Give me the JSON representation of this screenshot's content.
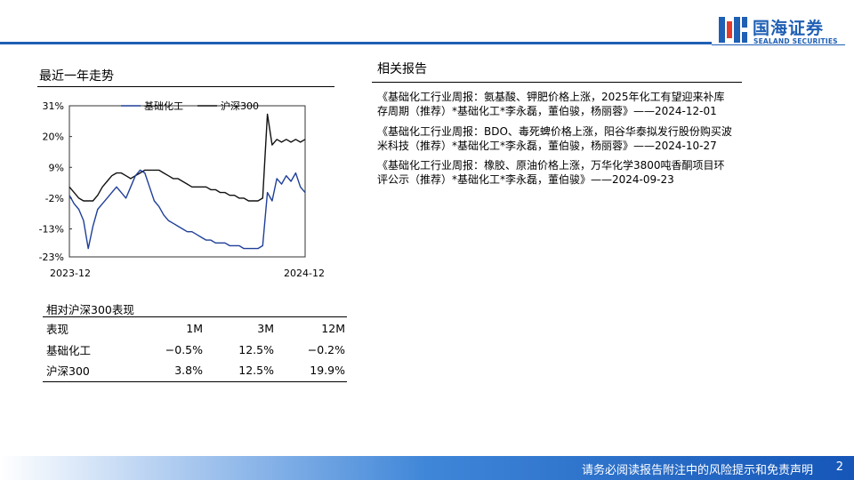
{
  "brand": {
    "name_cn": "国海证券",
    "name_en": "SEALAND SECURITIES",
    "color": "#1f5fb4"
  },
  "trend_section": {
    "title": "最近一年走势"
  },
  "reports_section": {
    "title": "相关报告",
    "items": [
      "《基础化工行业周报：氨基酸、钾肥价格上涨，2025年化工有望迎来补库存周期（推荐）*基础化工*李永磊，董伯骏，杨丽蓉》——2024-12-01",
      "《基础化工行业周报：BDO、毒死蜱价格上涨，阳谷华泰拟发行股份购买波米科技（推荐）*基础化工*李永磊，董伯骏，杨丽蓉》——2024-10-27",
      "《基础化工行业周报：橡胶、原油价格上涨，万华化学3800吨香酮项目环评公示（推荐）*基础化工*李永磊，董伯骏》——2024-09-23"
    ]
  },
  "chart_data": {
    "type": "line",
    "title": "",
    "xlabel": "",
    "ylabel": "",
    "x_tick_labels": [
      "2023-12",
      "2024-12"
    ],
    "y_ticks": [
      31,
      20,
      9,
      -2,
      -13,
      -23
    ],
    "y_tick_labels": [
      "31%",
      "20%",
      "9%",
      "-2%",
      "-13%",
      "-23%"
    ],
    "ylim": [
      -23,
      31
    ],
    "grid": false,
    "legend_position": "top",
    "x": [
      0,
      0.02,
      0.04,
      0.06,
      0.08,
      0.1,
      0.12,
      0.14,
      0.16,
      0.18,
      0.2,
      0.22,
      0.24,
      0.26,
      0.28,
      0.3,
      0.32,
      0.34,
      0.36,
      0.38,
      0.4,
      0.42,
      0.44,
      0.46,
      0.48,
      0.5,
      0.52,
      0.54,
      0.56,
      0.58,
      0.6,
      0.62,
      0.64,
      0.66,
      0.68,
      0.7,
      0.72,
      0.74,
      0.76,
      0.78,
      0.8,
      0.82,
      0.84,
      0.86,
      0.88,
      0.9,
      0.92,
      0.94,
      0.96,
      0.98,
      1
    ],
    "series": [
      {
        "name": "基础化工",
        "color": "#1f3f99",
        "values": [
          -1,
          -4,
          -6,
          -10,
          -20,
          -12,
          -6,
          -4,
          -2,
          0,
          2,
          0,
          -2,
          2,
          6,
          8,
          7,
          2,
          -3,
          -5,
          -8,
          -10,
          -11,
          -12,
          -13,
          -14,
          -14,
          -15,
          -16,
          -17,
          -17,
          -18,
          -18,
          -18,
          -19,
          -19,
          -19,
          -20,
          -20,
          -20,
          -20,
          -19,
          0,
          -3,
          5,
          3,
          6,
          4,
          7,
          2,
          0
        ]
      },
      {
        "name": "沪深300",
        "color": "#111111",
        "values": [
          2,
          0,
          -2,
          -3,
          -3,
          -3,
          -1,
          2,
          4,
          6,
          7,
          7,
          6,
          5,
          6,
          7,
          8,
          8,
          8,
          8,
          7,
          6,
          5,
          5,
          4,
          3,
          2,
          2,
          2,
          2,
          1,
          1,
          0,
          0,
          -1,
          -1,
          -2,
          -2,
          -3,
          -3,
          -3,
          -2,
          28,
          17,
          19,
          18,
          19,
          18,
          19,
          18,
          19
        ]
      }
    ]
  },
  "performance_table": {
    "title": "相对沪深300表现",
    "headers": [
      "表现",
      "1M",
      "3M",
      "12M"
    ],
    "rows": [
      [
        "基础化工",
        "−0.5%",
        "12.5%",
        "−0.2%"
      ],
      [
        "沪深300",
        "3.8%",
        "12.5%",
        "19.9%"
      ]
    ]
  },
  "footer": {
    "disclaimer": "请务必阅读报告附注中的风险提示和免责声明",
    "page_number": "2"
  }
}
